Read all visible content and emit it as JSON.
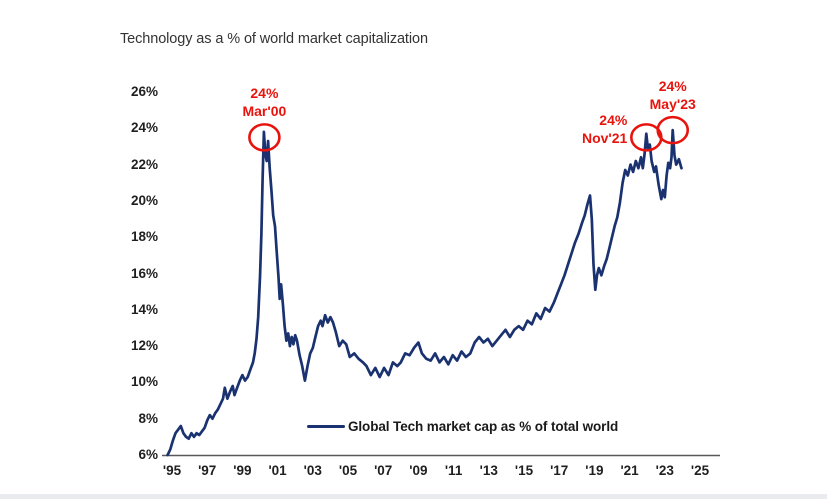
{
  "title": "Technology as a % of world market capitalization",
  "legend": {
    "label": "Global Tech market cap as % of total world"
  },
  "colors": {
    "line": "#1a326f",
    "annotation_red": "#e9130d",
    "axis_line": "#58595b",
    "tick_text": "#1f1f1f",
    "title_text": "#333333",
    "bottom_strip": "#e9ebee"
  },
  "chart_data": {
    "type": "line",
    "title": "Technology as a % of world market capitalization",
    "xlabel": "",
    "ylabel": "",
    "grid": false,
    "legend_position": "inside-bottom-center",
    "xlim": [
      1994.4,
      2026.1
    ],
    "ylim": [
      6,
      26
    ],
    "x_tick_labels": [
      "'95",
      "'97",
      "'99",
      "'01",
      "'03",
      "'05",
      "'07",
      "'09",
      "'11",
      "'13",
      "'15",
      "'17",
      "'19",
      "'21",
      "'23",
      "'25"
    ],
    "y_tick_labels": [
      "26%",
      "24%",
      "22%",
      "20%",
      "18%",
      "16%",
      "14%",
      "12%",
      "10%",
      "8%",
      "6%"
    ],
    "annotations": [
      {
        "value_label": "24%",
        "date_label": "Mar'00",
        "year": 2000.25,
        "value": 23.5,
        "placement": "above"
      },
      {
        "value_label": "24%",
        "date_label": "Nov'21",
        "year": 2021.95,
        "value": 23.5,
        "placement": "left"
      },
      {
        "value_label": "24%",
        "date_label": "May'23",
        "year": 2023.45,
        "value": 23.9,
        "placement": "above"
      }
    ],
    "series": [
      {
        "name": "Global Tech market cap as % of total world",
        "color": "#1a326f",
        "points": [
          [
            1994.75,
            6.0
          ],
          [
            1994.9,
            6.3
          ],
          [
            1995.05,
            6.8
          ],
          [
            1995.2,
            7.2
          ],
          [
            1995.35,
            7.4
          ],
          [
            1995.5,
            7.6
          ],
          [
            1995.65,
            7.2
          ],
          [
            1995.8,
            7.0
          ],
          [
            1995.95,
            6.9
          ],
          [
            1996.1,
            7.2
          ],
          [
            1996.25,
            7.0
          ],
          [
            1996.4,
            7.2
          ],
          [
            1996.55,
            7.1
          ],
          [
            1996.7,
            7.3
          ],
          [
            1996.85,
            7.5
          ],
          [
            1997.0,
            7.9
          ],
          [
            1997.15,
            8.2
          ],
          [
            1997.3,
            8.0
          ],
          [
            1997.45,
            8.3
          ],
          [
            1997.6,
            8.5
          ],
          [
            1997.75,
            8.8
          ],
          [
            1997.9,
            9.1
          ],
          [
            1998.0,
            9.7
          ],
          [
            1998.15,
            9.1
          ],
          [
            1998.3,
            9.5
          ],
          [
            1998.45,
            9.8
          ],
          [
            1998.55,
            9.3
          ],
          [
            1998.7,
            9.7
          ],
          [
            1998.85,
            10.1
          ],
          [
            1999.0,
            10.4
          ],
          [
            1999.15,
            10.1
          ],
          [
            1999.3,
            10.3
          ],
          [
            1999.45,
            10.7
          ],
          [
            1999.6,
            11.1
          ],
          [
            1999.7,
            11.6
          ],
          [
            1999.8,
            12.4
          ],
          [
            1999.9,
            13.6
          ],
          [
            2000.0,
            15.8
          ],
          [
            2000.08,
            18.2
          ],
          [
            2000.15,
            21.2
          ],
          [
            2000.22,
            23.8
          ],
          [
            2000.3,
            22.6
          ],
          [
            2000.38,
            22.2
          ],
          [
            2000.46,
            23.3
          ],
          [
            2000.55,
            21.8
          ],
          [
            2000.65,
            20.6
          ],
          [
            2000.75,
            19.2
          ],
          [
            2000.85,
            18.6
          ],
          [
            2000.95,
            17.2
          ],
          [
            2001.05,
            15.8
          ],
          [
            2001.12,
            14.6
          ],
          [
            2001.2,
            15.4
          ],
          [
            2001.3,
            14.3
          ],
          [
            2001.4,
            13.1
          ],
          [
            2001.5,
            12.3
          ],
          [
            2001.6,
            12.7
          ],
          [
            2001.7,
            12.0
          ],
          [
            2001.8,
            12.5
          ],
          [
            2001.9,
            12.1
          ],
          [
            2002.0,
            12.6
          ],
          [
            2002.1,
            12.3
          ],
          [
            2002.25,
            11.5
          ],
          [
            2002.4,
            10.9
          ],
          [
            2002.55,
            10.1
          ],
          [
            2002.7,
            10.9
          ],
          [
            2002.85,
            11.6
          ],
          [
            2003.0,
            11.9
          ],
          [
            2003.15,
            12.5
          ],
          [
            2003.3,
            13.1
          ],
          [
            2003.45,
            13.4
          ],
          [
            2003.55,
            13.1
          ],
          [
            2003.7,
            13.7
          ],
          [
            2003.85,
            13.3
          ],
          [
            2004.0,
            13.6
          ],
          [
            2004.15,
            13.3
          ],
          [
            2004.3,
            12.8
          ],
          [
            2004.5,
            12.0
          ],
          [
            2004.7,
            12.3
          ],
          [
            2004.9,
            12.1
          ],
          [
            2005.1,
            11.4
          ],
          [
            2005.35,
            11.6
          ],
          [
            2005.6,
            11.3
          ],
          [
            2005.85,
            11.1
          ],
          [
            2006.05,
            10.9
          ],
          [
            2006.3,
            10.4
          ],
          [
            2006.55,
            10.8
          ],
          [
            2006.8,
            10.3
          ],
          [
            2007.05,
            10.8
          ],
          [
            2007.3,
            10.4
          ],
          [
            2007.55,
            11.1
          ],
          [
            2007.8,
            10.9
          ],
          [
            2008.0,
            11.1
          ],
          [
            2008.25,
            11.6
          ],
          [
            2008.5,
            11.5
          ],
          [
            2008.75,
            11.9
          ],
          [
            2009.0,
            12.2
          ],
          [
            2009.2,
            11.6
          ],
          [
            2009.45,
            11.3
          ],
          [
            2009.7,
            11.2
          ],
          [
            2009.95,
            11.6
          ],
          [
            2010.2,
            11.1
          ],
          [
            2010.45,
            11.4
          ],
          [
            2010.7,
            11.0
          ],
          [
            2010.95,
            11.5
          ],
          [
            2011.2,
            11.2
          ],
          [
            2011.45,
            11.7
          ],
          [
            2011.7,
            11.4
          ],
          [
            2011.95,
            11.6
          ],
          [
            2012.2,
            12.2
          ],
          [
            2012.45,
            12.5
          ],
          [
            2012.7,
            12.2
          ],
          [
            2012.95,
            12.4
          ],
          [
            2013.2,
            12.0
          ],
          [
            2013.45,
            12.3
          ],
          [
            2013.7,
            12.6
          ],
          [
            2013.95,
            12.9
          ],
          [
            2014.2,
            12.5
          ],
          [
            2014.45,
            12.9
          ],
          [
            2014.7,
            13.1
          ],
          [
            2014.95,
            12.9
          ],
          [
            2015.2,
            13.4
          ],
          [
            2015.45,
            13.2
          ],
          [
            2015.7,
            13.8
          ],
          [
            2015.95,
            13.5
          ],
          [
            2016.2,
            14.1
          ],
          [
            2016.45,
            13.9
          ],
          [
            2016.7,
            14.4
          ],
          [
            2016.9,
            14.9
          ],
          [
            2017.1,
            15.4
          ],
          [
            2017.3,
            15.9
          ],
          [
            2017.5,
            16.5
          ],
          [
            2017.7,
            17.1
          ],
          [
            2017.9,
            17.7
          ],
          [
            2018.1,
            18.2
          ],
          [
            2018.3,
            18.8
          ],
          [
            2018.45,
            19.2
          ],
          [
            2018.6,
            19.8
          ],
          [
            2018.75,
            20.3
          ],
          [
            2018.85,
            19.0
          ],
          [
            2018.95,
            16.5
          ],
          [
            2019.05,
            15.1
          ],
          [
            2019.15,
            15.9
          ],
          [
            2019.25,
            16.3
          ],
          [
            2019.4,
            15.9
          ],
          [
            2019.55,
            16.4
          ],
          [
            2019.7,
            16.8
          ],
          [
            2019.85,
            17.4
          ],
          [
            2020.0,
            18.0
          ],
          [
            2020.15,
            18.6
          ],
          [
            2020.3,
            19.1
          ],
          [
            2020.45,
            19.9
          ],
          [
            2020.6,
            21.0
          ],
          [
            2020.75,
            21.7
          ],
          [
            2020.9,
            21.4
          ],
          [
            2021.05,
            22.0
          ],
          [
            2021.2,
            21.6
          ],
          [
            2021.35,
            22.2
          ],
          [
            2021.5,
            21.8
          ],
          [
            2021.65,
            22.4
          ],
          [
            2021.75,
            21.8
          ],
          [
            2021.85,
            22.6
          ],
          [
            2021.95,
            23.7
          ],
          [
            2022.05,
            22.8
          ],
          [
            2022.15,
            23.1
          ],
          [
            2022.25,
            22.2
          ],
          [
            2022.4,
            21.6
          ],
          [
            2022.5,
            21.9
          ],
          [
            2022.65,
            20.9
          ],
          [
            2022.8,
            20.1
          ],
          [
            2022.9,
            20.6
          ],
          [
            2023.0,
            20.2
          ],
          [
            2023.1,
            21.4
          ],
          [
            2023.2,
            22.1
          ],
          [
            2023.3,
            21.8
          ],
          [
            2023.38,
            22.4
          ],
          [
            2023.45,
            23.9
          ],
          [
            2023.55,
            22.5
          ],
          [
            2023.65,
            22.0
          ],
          [
            2023.8,
            22.3
          ],
          [
            2023.95,
            21.8
          ]
        ]
      }
    ]
  }
}
